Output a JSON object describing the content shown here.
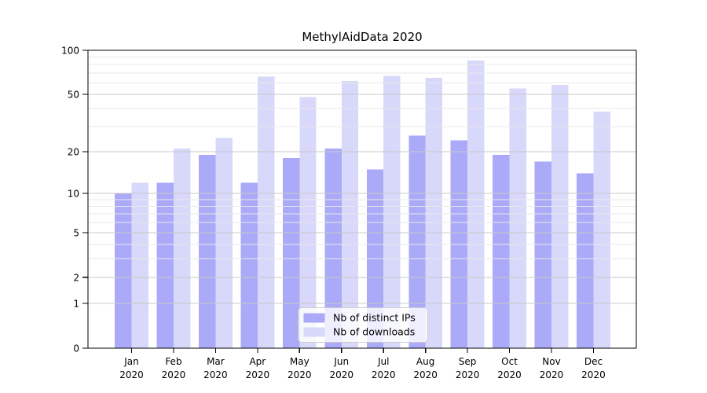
{
  "chart_data": {
    "type": "bar",
    "title": "MethylAidData 2020",
    "categories": [
      "Jan",
      "Feb",
      "Mar",
      "Apr",
      "May",
      "Jun",
      "Jul",
      "Aug",
      "Sep",
      "Oct",
      "Nov",
      "Dec"
    ],
    "category_sublabel": "2020",
    "series": [
      {
        "name": "Nb of distinct IPs",
        "color": "#aaaaf8",
        "values": [
          10,
          12,
          19,
          12,
          18,
          21,
          15,
          26,
          24,
          19,
          17,
          14
        ]
      },
      {
        "name": "Nb of downloads",
        "color": "#d8d8fa",
        "values": [
          12,
          21,
          25,
          66,
          48,
          62,
          67,
          65,
          85,
          55,
          58,
          38
        ]
      }
    ],
    "y_axis": {
      "scale": "log1p",
      "min": 0,
      "max": 100,
      "major_ticks": [
        0,
        1,
        2,
        5,
        10,
        20,
        50,
        100
      ],
      "minor_gridlines": [
        3,
        4,
        6,
        7,
        8,
        9,
        30,
        40,
        60,
        70,
        80,
        90
      ]
    },
    "grid": true,
    "legend": {
      "position": "inside-bottom-center"
    },
    "colors": {
      "bar_distinct_ips": "#aaaaf8",
      "bar_downloads": "#d8d8fa",
      "major_grid": "#c9c9c9",
      "minor_grid": "#e9e9e9",
      "spine": "#000000",
      "text": "#000000",
      "legend_border": "#cccccc",
      "legend_bg": "rgba(255,255,255,0.8)"
    }
  }
}
